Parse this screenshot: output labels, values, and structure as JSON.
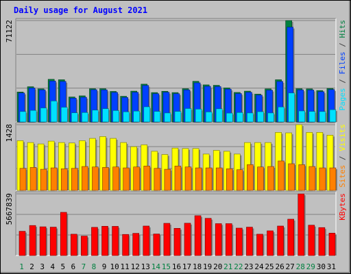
{
  "chart_data": {
    "type": "bar",
    "title": "Daily usage for August 2021",
    "categories": [
      "1",
      "2",
      "3",
      "4",
      "5",
      "6",
      "7",
      "8",
      "9",
      "10",
      "11",
      "12",
      "13",
      "14",
      "15",
      "16",
      "17",
      "18",
      "19",
      "20",
      "21",
      "22",
      "23",
      "24",
      "25",
      "26",
      "27",
      "28",
      "29",
      "30",
      "31"
    ],
    "weekend_days": [
      "1",
      "7",
      "8",
      "14",
      "15",
      "21",
      "22",
      "28",
      "29"
    ],
    "panels": [
      {
        "id": "hits-files-pages",
        "max_label": "71122",
        "ylim": [
          0,
          71122
        ],
        "right_label": [
          {
            "text": "Pages",
            "color": "#00e0ff"
          },
          {
            "text": " / ",
            "color": "#404040"
          },
          {
            "text": "Files",
            "color": "#0040ff"
          },
          {
            "text": " / ",
            "color": "#404040"
          },
          {
            "text": "Hits",
            "color": "#008040"
          }
        ],
        "series": [
          {
            "name": "Hits",
            "color": "#008040",
            "values": [
              21000,
              24700,
              23200,
              29900,
              29600,
              17500,
              18300,
              23300,
              23300,
              21400,
              18000,
              21600,
              26500,
              20600,
              21500,
              20600,
              23300,
              28500,
              26000,
              25700,
              23900,
              20700,
              21600,
              19500,
              23200,
              29600,
              71122,
              23300,
              23200,
              22000,
              23500
            ]
          },
          {
            "name": "Files",
            "color": "#0040ff",
            "values": [
              20300,
              23800,
              22500,
              28700,
              28400,
              16700,
              17300,
              22600,
              22500,
              20700,
              17200,
              20800,
              25600,
              19800,
              20800,
              19800,
              22500,
              27400,
              25000,
              24800,
              23000,
              19900,
              20800,
              18800,
              22300,
              28400,
              66500,
              22500,
              22400,
              21200,
              22700
            ]
          },
          {
            "name": "Pages",
            "color": "#00e0ff",
            "values": [
              7300,
              8100,
              9800,
              14700,
              10300,
              6400,
              6600,
              8300,
              9300,
              8000,
              7100,
              7600,
              10600,
              7400,
              6300,
              7400,
              9400,
              9000,
              7000,
              9200,
              6200,
              6600,
              6300,
              7200,
              6300,
              10500,
              20300,
              7700,
              7400,
              7300,
              8600
            ]
          }
        ]
      },
      {
        "id": "visits-sites",
        "max_label": "1428",
        "ylim": [
          0,
          1428
        ],
        "right_label": [
          {
            "text": "Sites",
            "color": "#ff8000"
          },
          {
            "text": " / ",
            "color": "#404040"
          },
          {
            "text": "Visits",
            "color": "#ffff00"
          }
        ],
        "series": [
          {
            "name": "Visits",
            "color": "#ffff00",
            "values": [
              1080,
              1040,
              1010,
              1070,
              1040,
              1030,
              1080,
              1130,
              1170,
              1130,
              1040,
              950,
              990,
              850,
              780,
              920,
              910,
              910,
              790,
              870,
              850,
              790,
              1040,
              1040,
              1040,
              1260,
              1250,
              1428,
              1260,
              1260,
              1200
            ]
          },
          {
            "name": "Sites",
            "color": "#ff8000",
            "values": [
              480,
              500,
              460,
              490,
              470,
              480,
              520,
              510,
              500,
              510,
              490,
              510,
              530,
              480,
              460,
              530,
              510,
              490,
              490,
              490,
              470,
              450,
              560,
              510,
              520,
              640,
              580,
              560,
              520,
              490,
              490
            ]
          }
        ]
      },
      {
        "id": "kbytes",
        "max_label": "5667839",
        "ylim": [
          0,
          5667839
        ],
        "right_label": [
          {
            "text": "KBytes",
            "color": "#ff0000"
          }
        ],
        "series": [
          {
            "name": "KBytes",
            "color": "#ff0000",
            "values": [
              2230000,
              2760000,
              2640000,
              2610000,
              3970000,
              1960000,
              1790000,
              2590000,
              2690000,
              2680000,
              1940000,
              2040000,
              2710000,
              1980000,
              2960000,
              2500000,
              2970000,
              3660000,
              3420000,
              2930000,
              2930000,
              2520000,
              2610000,
              1960000,
              2270000,
              2710000,
              3340000,
              5667839,
              2790000,
              2570000,
              2060000
            ]
          }
        ]
      }
    ]
  }
}
